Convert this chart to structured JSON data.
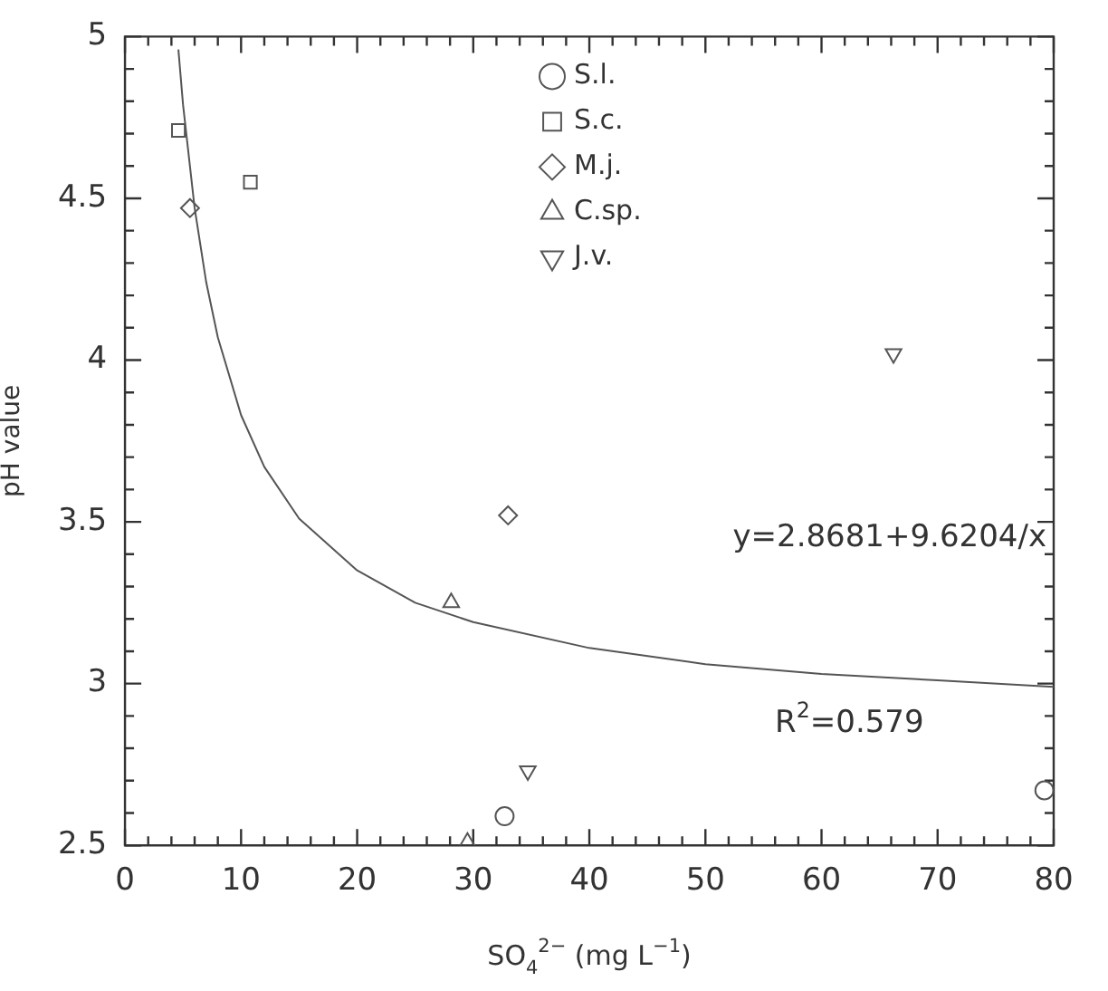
{
  "chart_data": {
    "type": "scatter",
    "xlabel": "SO$_{4}$$^{2−}$ (mg L$^{−1}$)",
    "ylabel": "pH value",
    "xlim": [
      0,
      80
    ],
    "ylim": [
      2.5,
      5
    ],
    "xticks": [
      0,
      {
        "value": 2,
        "label": null
      },
      {
        "value": 4,
        "label": null
      },
      {
        "value": 6,
        "label": null
      },
      {
        "value": 8,
        "label": null
      },
      10,
      {
        "value": 12,
        "label": null
      },
      {
        "value": 14,
        "label": null
      },
      {
        "value": 16,
        "label": null
      },
      {
        "value": 18,
        "label": null
      },
      20,
      {
        "value": 22,
        "label": null
      },
      {
        "value": 24,
        "label": null
      },
      {
        "value": 26,
        "label": null
      },
      {
        "value": 28,
        "label": null
      },
      30,
      {
        "value": 32,
        "label": null
      },
      {
        "value": 34,
        "label": null
      },
      {
        "value": 36,
        "label": null
      },
      {
        "value": 38,
        "label": null
      },
      40,
      {
        "value": 42,
        "label": null
      },
      {
        "value": 44,
        "label": null
      },
      {
        "value": 46,
        "label": null
      },
      {
        "value": 48,
        "label": null
      },
      50,
      {
        "value": 52,
        "label": null
      },
      {
        "value": 54,
        "label": null
      },
      {
        "value": 56,
        "label": null
      },
      {
        "value": 58,
        "label": null
      },
      60,
      {
        "value": 62,
        "label": null
      },
      {
        "value": 64,
        "label": null
      },
      {
        "value": 66,
        "label": null
      },
      {
        "value": 68,
        "label": null
      },
      70,
      {
        "value": 72,
        "label": null
      },
      {
        "value": 74,
        "label": null
      },
      {
        "value": 76,
        "label": null
      },
      {
        "value": 78,
        "label": null
      },
      80
    ],
    "yticks": [
      2.5,
      {
        "value": 2.6,
        "label": null
      },
      {
        "value": 2.7,
        "label": null
      },
      {
        "value": 2.8,
        "label": null
      },
      {
        "value": 2.9,
        "label": null
      },
      3,
      {
        "value": 3.1,
        "label": null
      },
      {
        "value": 3.2,
        "label": null
      },
      {
        "value": 3.3,
        "label": null
      },
      {
        "value": 3.4,
        "label": null
      },
      3.5,
      {
        "value": 3.6,
        "label": null
      },
      {
        "value": 3.7,
        "label": null
      },
      {
        "value": 3.8,
        "label": null
      },
      {
        "value": 3.9,
        "label": null
      },
      4,
      {
        "value": 4.1,
        "label": null
      },
      {
        "value": 4.2,
        "label": null
      },
      {
        "value": 4.3,
        "label": null
      },
      {
        "value": 4.4,
        "label": null
      },
      4.5,
      {
        "value": 4.6,
        "label": null
      },
      {
        "value": 4.7,
        "label": null
      },
      {
        "value": 4.8,
        "label": null
      },
      {
        "value": 4.9,
        "label": null
      },
      5
    ],
    "grid": false,
    "legend": "top",
    "annotations": [
      "y=2.8681+9.6204/x",
      "R$^{2}$=0.579"
    ],
    "series": [
      {
        "name": "S.l.",
        "color": "#555555",
        "marker": "circle",
        "x": [
          32.7,
          79.2
        ],
        "values": [
          2.59,
          2.67
        ]
      },
      {
        "name": "S.c.",
        "color": "#555555",
        "marker": "square",
        "x": [
          4.6,
          10.8
        ],
        "values": [
          4.71,
          4.55
        ]
      },
      {
        "name": "M.j.",
        "color": "#555555",
        "marker": "diamond",
        "x": [
          5.6,
          33.0
        ],
        "values": [
          4.47,
          3.52
        ]
      },
      {
        "name": "C.sp.",
        "color": "#555555",
        "marker": "triangle",
        "x": [
          28.1,
          29.5
        ],
        "values": [
          3.25,
          2.51
        ]
      },
      {
        "name": "J.v.",
        "color": "#555555",
        "marker": "triangle-down",
        "x": [
          34.7,
          66.2
        ],
        "values": [
          2.73,
          4.02
        ]
      },
      {
        "type": "line",
        "color": "#555555",
        "marker": "none",
        "x": [
          4.6,
          5,
          6,
          7,
          8,
          10,
          12,
          15,
          20,
          25,
          30,
          40,
          50,
          60,
          70,
          80
        ],
        "values": [
          4.96,
          4.79,
          4.47,
          4.24,
          4.07,
          3.83,
          3.67,
          3.51,
          3.35,
          3.25,
          3.19,
          3.11,
          3.06,
          3.03,
          3.01,
          2.99
        ]
      }
    ]
  }
}
